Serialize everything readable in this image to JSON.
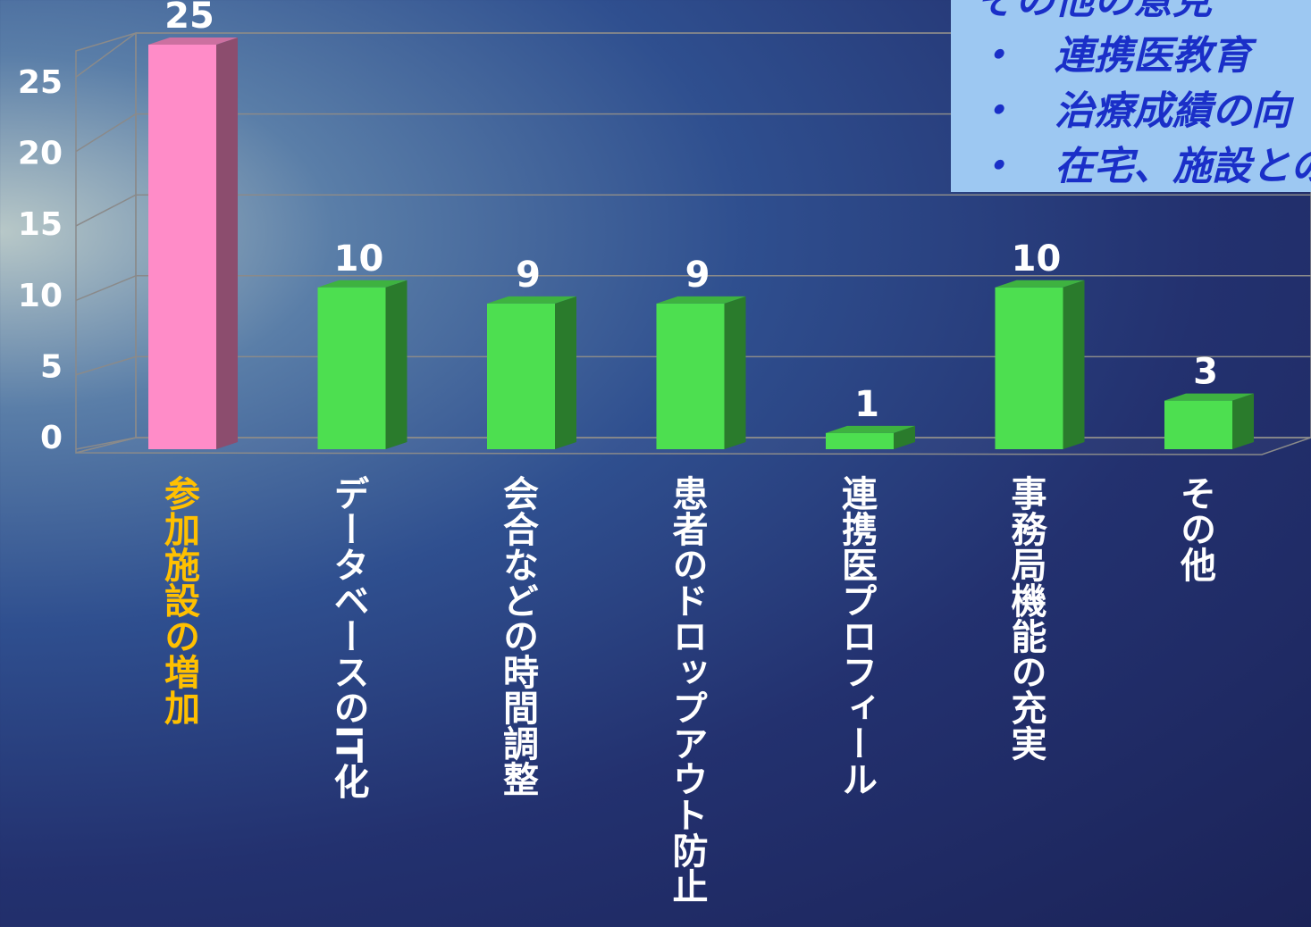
{
  "chart_data": {
    "type": "bar",
    "categories": [
      "参加施設の増加",
      "データベースのIT化",
      "会合などの時間調整",
      "患者のドロップアウト防止",
      "連携医プロフィール",
      "事務局機能の充実",
      "その他"
    ],
    "values": [
      25,
      10,
      9,
      9,
      1,
      10,
      3
    ],
    "colors": [
      "#ff8cc8",
      "#4ddf50",
      "#4ddf50",
      "#4ddf50",
      "#4ddf50",
      "#4ddf50",
      "#4ddf50"
    ],
    "label_colors": [
      "#ffc000",
      "#ffffff",
      "#ffffff",
      "#ffffff",
      "#ffffff",
      "#ffffff",
      "#ffffff"
    ],
    "ylim": [
      0,
      25
    ],
    "yticks": [
      0,
      5,
      10,
      15,
      20,
      25
    ],
    "grid": true
  },
  "note": {
    "title": "その他の意見",
    "items": [
      "・　連携医教育",
      "・　治療成績の向",
      "・　在宅、施設との"
    ]
  }
}
